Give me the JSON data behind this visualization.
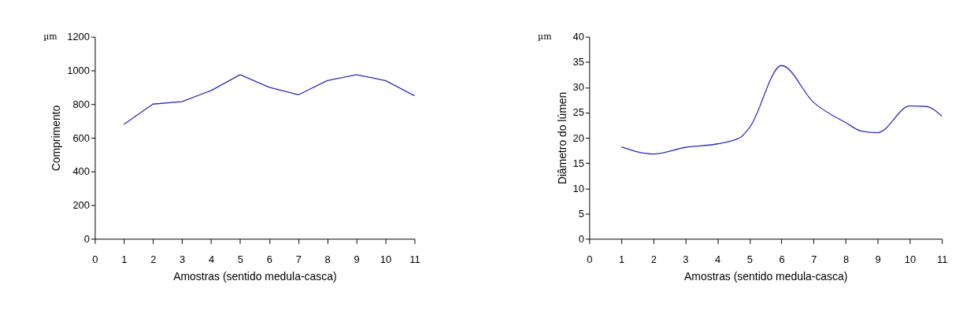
{
  "chart_data": [
    {
      "type": "line",
      "xlabel": "Amostras (sentido medula-casca)",
      "ylabel": "Comprimento",
      "annotations": [
        "µm"
      ],
      "x": [
        1,
        2,
        3,
        4,
        5,
        6,
        7,
        8,
        9,
        10,
        11
      ],
      "series": [
        {
          "color": "#2b2bbf",
          "values": [
            680,
            800,
            815,
            880,
            975,
            900,
            855,
            940,
            975,
            940,
            850
          ]
        }
      ],
      "xlim": [
        0,
        11
      ],
      "xticks": [
        0,
        1,
        2,
        3,
        4,
        5,
        6,
        7,
        8,
        9,
        10,
        11
      ],
      "ylim": [
        0,
        1200
      ],
      "yticks": [
        0,
        200,
        400,
        600,
        800,
        1000,
        1200
      ],
      "grid": false
    },
    {
      "type": "line",
      "xlabel": "Amostras (sentido medula-casca)",
      "ylabel": "Diâmetro do lúmen",
      "annotations": [
        "µm"
      ],
      "x": [
        1,
        2,
        3,
        4,
        4.7,
        5,
        6,
        7,
        8,
        8.5,
        9,
        10,
        10.5,
        11
      ],
      "series": [
        {
          "color": "#2b2bbf",
          "values": [
            18.2,
            16.8,
            18.1,
            18.8,
            20,
            22,
            34.3,
            27,
            23,
            21.3,
            21,
            26.3,
            26.2,
            24.3
          ]
        }
      ],
      "xlim": [
        0,
        11
      ],
      "xticks": [
        0,
        1,
        2,
        3,
        4,
        5,
        6,
        7,
        8,
        9,
        10,
        11
      ],
      "ylim": [
        0,
        40
      ],
      "yticks": [
        0,
        5,
        10,
        15,
        20,
        25,
        30,
        35,
        40
      ],
      "grid": false
    }
  ]
}
